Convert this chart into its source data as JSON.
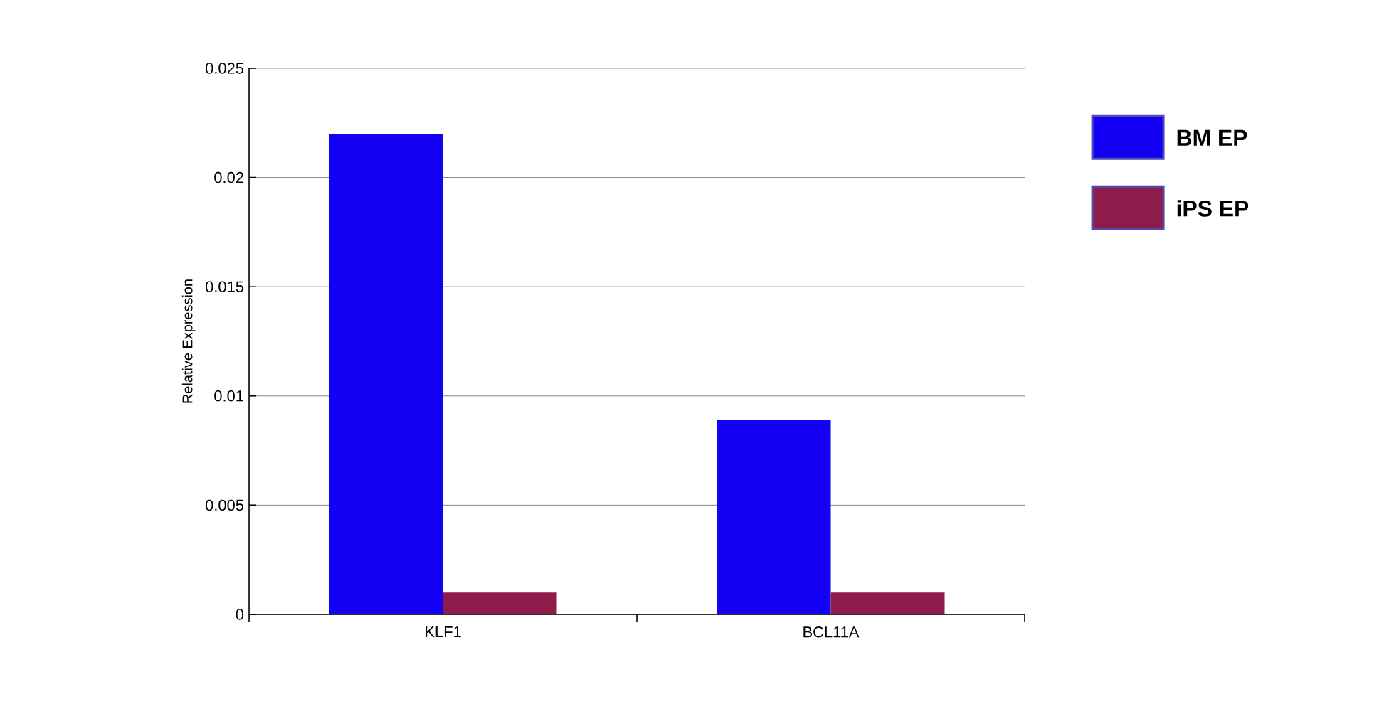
{
  "chart_data": {
    "type": "bar",
    "ylabel": "Relative Expression",
    "categories": [
      "KLF1",
      "BCL11A"
    ],
    "series": [
      {
        "name": "BM EP",
        "color": "#1400f5",
        "values": [
          0.022,
          0.0089
        ]
      },
      {
        "name": "iPS EP",
        "color": "#8e1c4a",
        "values": [
          0.001,
          0.001
        ]
      }
    ],
    "ylim": [
      0,
      0.025
    ],
    "yticks": [
      0,
      0.005,
      0.01,
      0.015,
      0.02,
      0.025
    ],
    "grid": "y",
    "legend": "right"
  }
}
